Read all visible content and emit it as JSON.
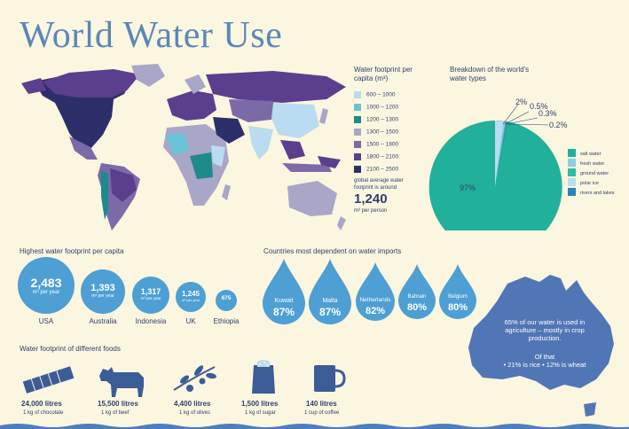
{
  "title": "World Water Use",
  "legend": {
    "title": "Water footprint per capita (m³)",
    "items": [
      {
        "label": "600 – 1000",
        "color": "#b9dcf0"
      },
      {
        "label": "1000 – 1200",
        "color": "#6cc2d6"
      },
      {
        "label": "1200 – 1300",
        "color": "#1d8a8c"
      },
      {
        "label": "1300 – 1500",
        "color": "#a9a6c8"
      },
      {
        "label": "1500 – 1800",
        "color": "#7c6aa8"
      },
      {
        "label": "1800 – 2100",
        "color": "#5b3f8e"
      },
      {
        "label": "2100 – 2500",
        "color": "#2d2f6a"
      }
    ],
    "avg_text": "global average water footprint is around",
    "avg_value": "1,240",
    "avg_unit": "m³ per person"
  },
  "pie": {
    "title": "Breakdown of the world's water types",
    "slices": [
      {
        "label": "salt water",
        "value": 97,
        "pct_label": "97%",
        "color": "#21b09a"
      },
      {
        "label": "fresh water",
        "value": 0.5,
        "pct_label": "0.5%",
        "color": "#8ad0e4"
      },
      {
        "label": "ground water",
        "value": 0.3,
        "pct_label": "0.3%",
        "color": "#30b9a6"
      },
      {
        "label": "polar ice",
        "value": 2,
        "pct_label": "2%",
        "color": "#b9dcf0"
      },
      {
        "label": "rivers and lakes",
        "value": 0.2,
        "pct_label": "0.2%",
        "color": "#2b83b8"
      }
    ]
  },
  "highest": {
    "title": "Highest water footprint per capita",
    "unit": "m³ per year",
    "items": [
      {
        "value": "2,483",
        "country": "USA"
      },
      {
        "value": "1,393",
        "country": "Australia"
      },
      {
        "value": "1,317",
        "country": "Indonesia"
      },
      {
        "value": "1,245",
        "country": "UK"
      },
      {
        "value": "675",
        "country": "Ethiopia"
      }
    ]
  },
  "imports": {
    "title": "Countries most dependent on water imports",
    "items": [
      {
        "country": "Kuwait",
        "pct": "87%"
      },
      {
        "country": "Malta",
        "pct": "87%"
      },
      {
        "country": "Netherlands",
        "pct": "82%"
      },
      {
        "country": "Bahrain",
        "pct": "80%"
      },
      {
        "country": "Belgium",
        "pct": "80%"
      }
    ]
  },
  "australia": {
    "text1": "65% of our water is used in agriculture – mostly in crop production.",
    "text2": "Of that",
    "text3": "• 21% is rice  • 12% is wheat"
  },
  "foods": {
    "title": "Water footprint of different foods",
    "items": [
      {
        "amount": "24,000 litres",
        "desc": "1 kg of chocolate",
        "icon": "chocolate-icon"
      },
      {
        "amount": "15,500 litres",
        "desc": "1 kg of beef",
        "icon": "cow-icon"
      },
      {
        "amount": "4,400 litres",
        "desc": "1 kg of olives",
        "icon": "olive-branch-icon"
      },
      {
        "amount": "1,500 litres",
        "desc": "1 kg of sugar",
        "icon": "sugar-bag-icon"
      },
      {
        "amount": "140 litres",
        "desc": "1 cup of coffee",
        "icon": "mug-icon"
      }
    ]
  },
  "colors": {
    "accent": "#5b87b8",
    "text": "#2f3f6e",
    "drop": "#4d9fd4",
    "australia": "#5176b6"
  }
}
